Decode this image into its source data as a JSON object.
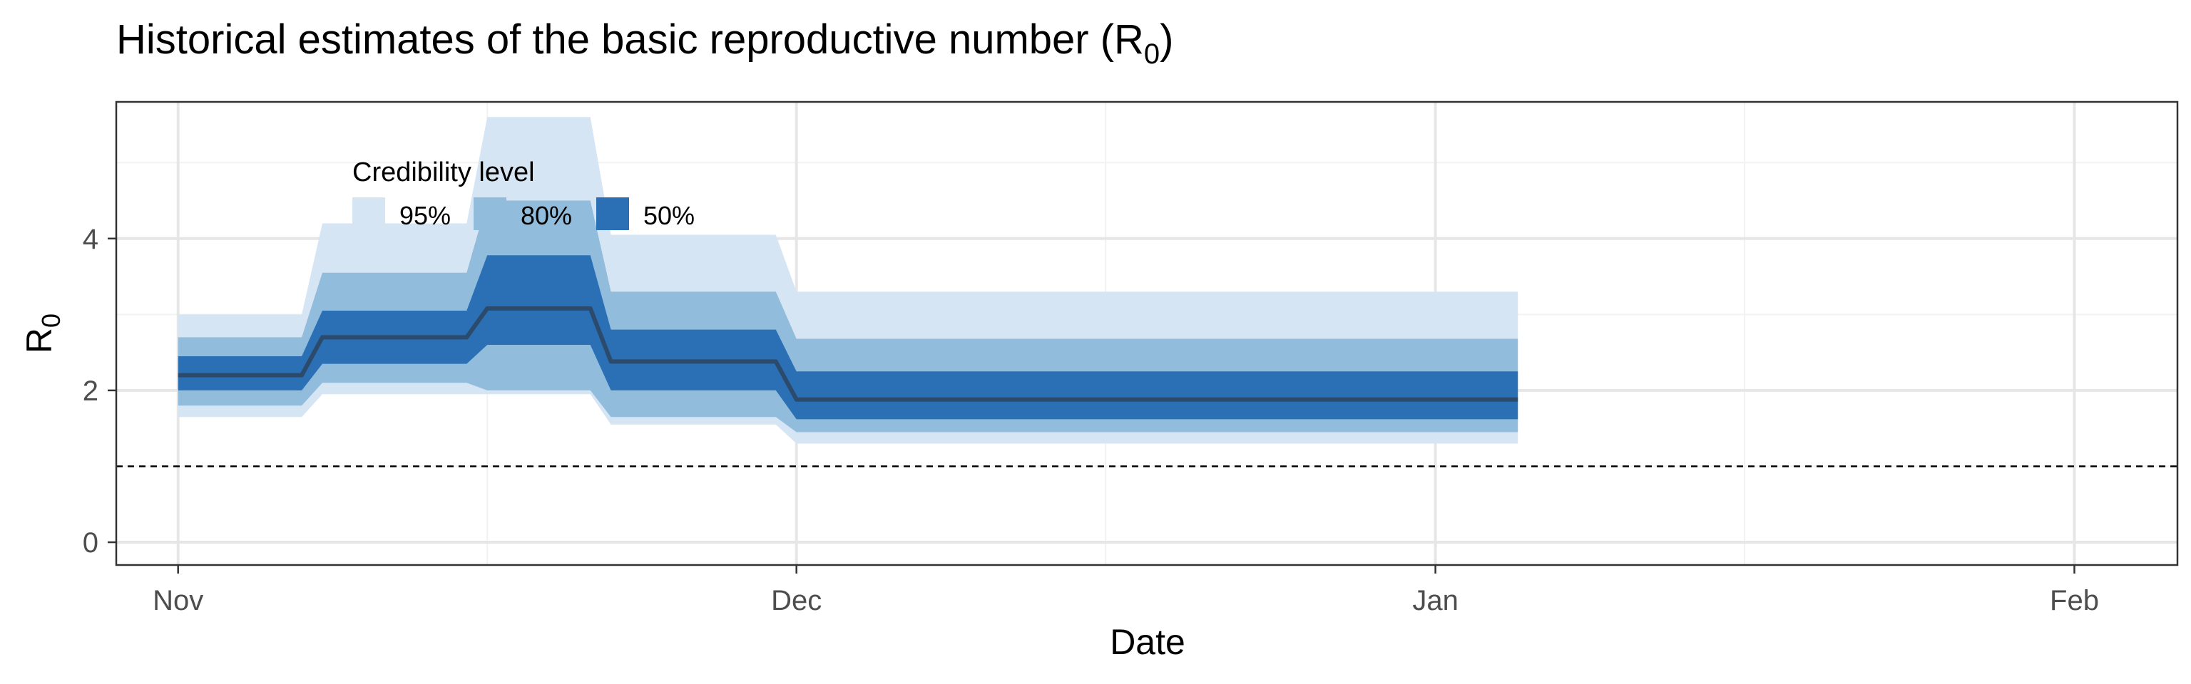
{
  "title": "Historical estimates of the basic reproductive number (R",
  "title_sub": "0",
  "title_close": ")",
  "ylabel": "R",
  "ylabel_sub": "0",
  "colors": {
    "band95": "#d6e5f4",
    "band80": "#91bcdb",
    "band50": "#2b70b5",
    "median": "#2c4a6b",
    "grid_major": "#e6e6e6",
    "grid_minor": "#f2f2f2",
    "axis": "#333333",
    "reference_line": "#000000"
  },
  "chart_data": {
    "type": "area",
    "title": "Historical estimates of the basic reproductive number (R0)",
    "xlabel": "Date",
    "ylabel": "R0",
    "x_type": "date",
    "xlim": [
      "2020-10-29",
      "2021-02-06"
    ],
    "ylim": [
      -0.3,
      5.8
    ],
    "x_ticks": [
      {
        "date": "2020-11-01",
        "label": "Nov"
      },
      {
        "date": "2020-12-01",
        "label": "Dec"
      },
      {
        "date": "2021-01-01",
        "label": "Jan"
      },
      {
        "date": "2021-02-01",
        "label": "Feb"
      }
    ],
    "x_minor_grid": [
      "2020-11-16",
      "2020-12-16",
      "2021-01-16"
    ],
    "y_ticks": [
      0,
      2,
      4
    ],
    "y_minor_grid": [
      1,
      3,
      5
    ],
    "grid": true,
    "reference_line": {
      "y": 1,
      "style": "dashed"
    },
    "legend": {
      "title": "Credibility level",
      "placement": "top-left inside",
      "items": [
        "95%",
        "80%",
        "50%"
      ]
    },
    "series": [
      {
        "name": "95%",
        "x": [
          "2020-11-01",
          "2020-11-07",
          "2020-11-08",
          "2020-11-15",
          "2020-11-16",
          "2020-11-21",
          "2020-11-22",
          "2020-11-30",
          "2020-12-01",
          "2021-01-05"
        ],
        "lower": [
          1.65,
          1.65,
          1.95,
          1.95,
          1.95,
          1.95,
          1.55,
          1.55,
          1.3,
          1.3
        ],
        "upper": [
          3.0,
          3.0,
          4.2,
          4.2,
          5.6,
          5.6,
          4.05,
          4.05,
          3.3,
          3.3
        ]
      },
      {
        "name": "80%",
        "x": [
          "2020-11-01",
          "2020-11-07",
          "2020-11-08",
          "2020-11-15",
          "2020-11-16",
          "2020-11-21",
          "2020-11-22",
          "2020-11-30",
          "2020-12-01",
          "2021-01-05"
        ],
        "lower": [
          1.8,
          1.8,
          2.1,
          2.1,
          2.0,
          2.0,
          1.65,
          1.65,
          1.45,
          1.45
        ],
        "upper": [
          2.7,
          2.7,
          3.55,
          3.55,
          4.5,
          4.5,
          3.3,
          3.3,
          2.68,
          2.68
        ]
      },
      {
        "name": "50%",
        "x": [
          "2020-11-01",
          "2020-11-07",
          "2020-11-08",
          "2020-11-15",
          "2020-11-16",
          "2020-11-21",
          "2020-11-22",
          "2020-11-30",
          "2020-12-01",
          "2021-01-05"
        ],
        "lower": [
          2.0,
          2.0,
          2.35,
          2.35,
          2.6,
          2.6,
          2.0,
          2.0,
          1.62,
          1.62
        ],
        "upper": [
          2.45,
          2.45,
          3.05,
          3.05,
          3.78,
          3.78,
          2.8,
          2.8,
          2.25,
          2.25
        ]
      },
      {
        "name": "median",
        "x": [
          "2020-11-01",
          "2020-11-07",
          "2020-11-08",
          "2020-11-15",
          "2020-11-16",
          "2020-11-21",
          "2020-11-22",
          "2020-11-30",
          "2020-12-01",
          "2021-01-05"
        ],
        "values": [
          2.2,
          2.2,
          2.7,
          2.7,
          3.08,
          3.08,
          2.38,
          2.38,
          1.88,
          1.88
        ]
      }
    ]
  }
}
